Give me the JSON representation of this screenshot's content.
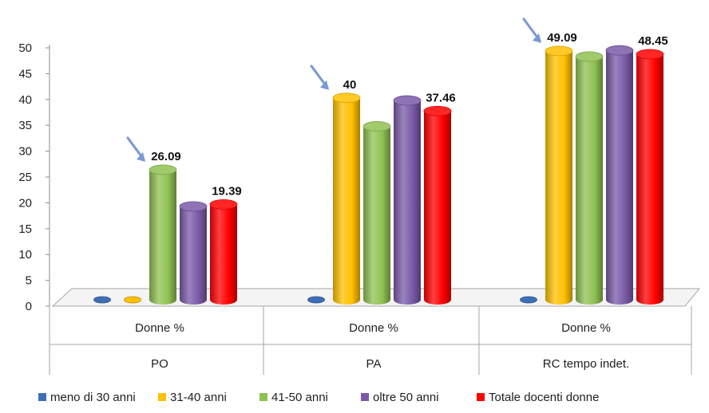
{
  "chart_data": {
    "type": "bar",
    "title": "",
    "xlabel": "",
    "ylabel": "",
    "ylim": [
      0,
      50
    ],
    "yticks": [
      0,
      5,
      10,
      15,
      20,
      25,
      30,
      35,
      40,
      45,
      50
    ],
    "grid": false,
    "legend_position": "bottom",
    "categories": [
      {
        "top_label": "Donne %",
        "bottom_label": "PO"
      },
      {
        "top_label": "Donne %",
        "bottom_label": "PA"
      },
      {
        "top_label": "Donne %",
        "bottom_label": "RC tempo indet."
      }
    ],
    "series": [
      {
        "name": "meno di 30 anni",
        "color": "#3d6fb6",
        "values": [
          0,
          0,
          0
        ]
      },
      {
        "name": "31-40 anni",
        "color": "#ffc000",
        "values": [
          0,
          40,
          49.09
        ]
      },
      {
        "name": "41-50 anni",
        "color": "#8fc152",
        "values": [
          26.09,
          34.5,
          48.0
        ]
      },
      {
        "name": "oltre 50 anni",
        "color": "#7a5aa8",
        "values": [
          19.0,
          39.5,
          49.2
        ]
      },
      {
        "name": "Totale docenti donne",
        "color": "#ff0000",
        "values": [
          19.39,
          37.46,
          48.45
        ]
      }
    ],
    "annotations": [
      {
        "text": "26.09",
        "category": 0,
        "series": 2
      },
      {
        "text": "19.39",
        "category": 0,
        "series": 4
      },
      {
        "text": "40",
        "category": 1,
        "series": 1
      },
      {
        "text": "37.46",
        "category": 1,
        "series": 4
      },
      {
        "text": "49.09",
        "category": 2,
        "series": 1
      },
      {
        "text": "48.45",
        "category": 2,
        "series": 4
      }
    ],
    "arrow_markers": [
      {
        "category": 0,
        "series": 2
      },
      {
        "category": 1,
        "series": 1
      },
      {
        "category": 2,
        "series": 1
      }
    ]
  }
}
